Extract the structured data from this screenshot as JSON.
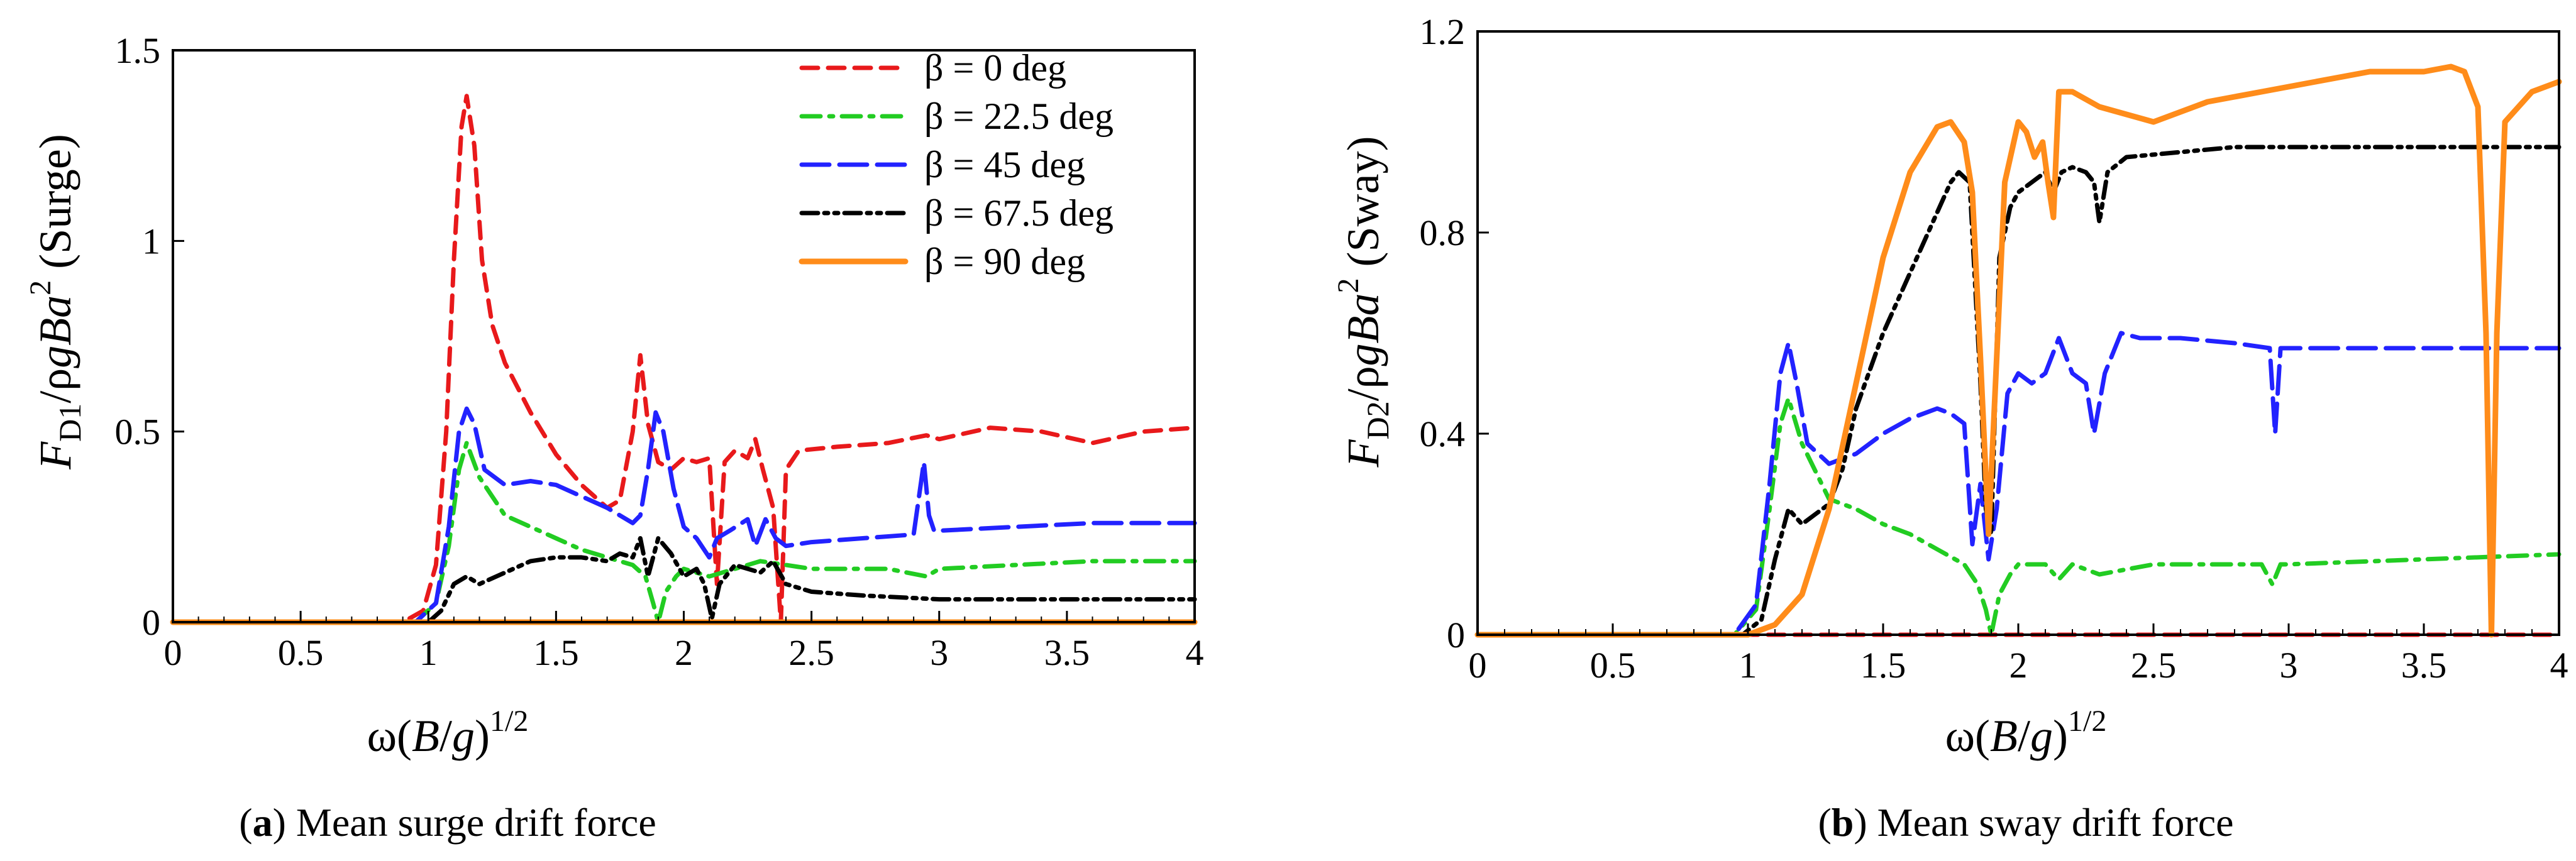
{
  "chart_data": [
    {
      "type": "line",
      "panel_letter": "a",
      "caption": "Mean surge drift force",
      "xlabel": {
        "main": "ω(",
        "var": "B",
        "slash": "/",
        "var2": "g",
        "close": ")",
        "sup": "1/2"
      },
      "ylabel": {
        "F": "F",
        "sub": "D1",
        "mid": "/ρ",
        "g": "g",
        "B": "B",
        "a": "a",
        "sup": "2",
        "tag": " (Surge)"
      },
      "xlim": [
        0,
        4
      ],
      "ylim": [
        0,
        1.5
      ],
      "xticks": [
        0,
        0.5,
        1,
        1.5,
        2,
        2.5,
        3,
        3.5,
        4
      ],
      "xtick_labels": [
        "0",
        "0.5",
        "1",
        "1.5",
        "2",
        "2.5",
        "3",
        "3.5",
        "4"
      ],
      "yticks": [
        0,
        0.5,
        1,
        1.5
      ],
      "ytick_labels": [
        "0",
        "0.5",
        "1",
        "1.5"
      ],
      "series": [
        {
          "name": "β = 0 deg",
          "color": "#e8191b",
          "style": "dashed",
          "x": [
            0,
            0.9,
            0.98,
            1.03,
            1.07,
            1.1,
            1.13,
            1.15,
            1.18,
            1.21,
            1.25,
            1.3,
            1.4,
            1.5,
            1.6,
            1.7,
            1.75,
            1.8,
            1.83,
            1.86,
            1.9,
            1.95,
            2.0,
            2.05,
            2.1,
            2.13,
            2.16,
            2.2,
            2.25,
            2.28,
            2.31,
            2.35,
            2.38,
            2.4,
            2.45,
            2.6,
            2.8,
            2.95,
            3.0,
            3.2,
            3.4,
            3.6,
            3.8,
            4.0
          ],
          "values": [
            0,
            0,
            0.03,
            0.15,
            0.5,
            0.95,
            1.3,
            1.38,
            1.25,
            0.95,
            0.78,
            0.68,
            0.55,
            0.44,
            0.36,
            0.3,
            0.32,
            0.5,
            0.7,
            0.52,
            0.42,
            0.4,
            0.43,
            0.42,
            0.43,
            0.1,
            0.42,
            0.45,
            0.43,
            0.48,
            0.4,
            0.3,
            0.0,
            0.4,
            0.45,
            0.46,
            0.47,
            0.49,
            0.48,
            0.51,
            0.5,
            0.47,
            0.5,
            0.51
          ]
        },
        {
          "name": "β = 22.5 deg",
          "color": "#22cc22",
          "style": "dashdot",
          "x": [
            0,
            0.95,
            1.03,
            1.08,
            1.12,
            1.15,
            1.2,
            1.3,
            1.4,
            1.5,
            1.6,
            1.7,
            1.8,
            1.85,
            1.88,
            1.9,
            1.93,
            1.97,
            2.0,
            2.1,
            2.2,
            2.3,
            2.4,
            2.5,
            2.8,
            2.95,
            3.0,
            3.3,
            3.6,
            4.0
          ],
          "values": [
            0,
            0,
            0.05,
            0.2,
            0.4,
            0.47,
            0.38,
            0.28,
            0.25,
            0.22,
            0.19,
            0.17,
            0.15,
            0.12,
            0.05,
            0.0,
            0.08,
            0.12,
            0.14,
            0.12,
            0.14,
            0.16,
            0.15,
            0.14,
            0.14,
            0.12,
            0.14,
            0.15,
            0.16,
            0.16
          ]
        },
        {
          "name": "β = 45 deg",
          "color": "#2222ff",
          "style": "longdash",
          "x": [
            0,
            0.95,
            1.03,
            1.08,
            1.12,
            1.15,
            1.18,
            1.22,
            1.3,
            1.4,
            1.5,
            1.6,
            1.7,
            1.8,
            1.83,
            1.86,
            1.89,
            1.92,
            1.96,
            2.0,
            2.05,
            2.1,
            2.13,
            2.18,
            2.25,
            2.28,
            2.32,
            2.36,
            2.4,
            2.5,
            2.7,
            2.9,
            2.94,
            2.96,
            2.98,
            3.0,
            3.3,
            3.6,
            4.0
          ],
          "values": [
            0,
            0,
            0.05,
            0.25,
            0.5,
            0.56,
            0.52,
            0.4,
            0.36,
            0.37,
            0.36,
            0.33,
            0.3,
            0.26,
            0.28,
            0.4,
            0.55,
            0.5,
            0.35,
            0.25,
            0.22,
            0.17,
            0.22,
            0.24,
            0.27,
            0.2,
            0.27,
            0.22,
            0.2,
            0.21,
            0.22,
            0.23,
            0.42,
            0.28,
            0.24,
            0.24,
            0.25,
            0.26,
            0.26
          ]
        },
        {
          "name": "β = 67.5 deg",
          "color": "#000000",
          "style": "dashdotdot",
          "x": [
            0,
            1.0,
            1.05,
            1.1,
            1.15,
            1.2,
            1.3,
            1.4,
            1.5,
            1.6,
            1.7,
            1.75,
            1.8,
            1.83,
            1.86,
            1.9,
            1.95,
            2.0,
            2.05,
            2.08,
            2.11,
            2.14,
            2.2,
            2.3,
            2.35,
            2.4,
            2.5,
            2.7,
            3.0,
            3.5,
            4.0
          ],
          "values": [
            0,
            0,
            0.03,
            0.1,
            0.12,
            0.1,
            0.13,
            0.16,
            0.17,
            0.17,
            0.16,
            0.18,
            0.17,
            0.22,
            0.12,
            0.22,
            0.18,
            0.12,
            0.14,
            0.1,
            0.01,
            0.1,
            0.15,
            0.13,
            0.16,
            0.1,
            0.08,
            0.07,
            0.06,
            0.06,
            0.06
          ]
        },
        {
          "name": "β = 90 deg",
          "color": "#ff8c1a",
          "style": "solid",
          "x": [
            0,
            4.0
          ],
          "values": [
            0,
            0
          ]
        }
      ],
      "legend": "top-right"
    },
    {
      "type": "line",
      "panel_letter": "b",
      "caption": "Mean sway drift force",
      "xlabel": {
        "main": "ω(",
        "var": "B",
        "slash": "/",
        "var2": "g",
        "close": ")",
        "sup": "1/2"
      },
      "ylabel": {
        "F": "F",
        "sub": "D2",
        "mid": "/ρ",
        "g": "g",
        "B": "B",
        "a": "a",
        "sup": "2",
        "tag": " (Sway)"
      },
      "xlim": [
        0,
        4
      ],
      "ylim": [
        0,
        1.2
      ],
      "xticks": [
        0,
        0.5,
        1,
        1.5,
        2,
        2.5,
        3,
        3.5,
        4
      ],
      "xtick_labels": [
        "0",
        "0.5",
        "1",
        "1.5",
        "2",
        "2.5",
        "3",
        "3.5",
        "4"
      ],
      "yticks": [
        0,
        0.4,
        0.8,
        1.2
      ],
      "ytick_labels": [
        "0",
        "0.4",
        "0.8",
        "1.2"
      ],
      "series": [
        {
          "name": "β = 0 deg",
          "color": "#e8191b",
          "style": "dashed",
          "x": [
            0,
            4.0
          ],
          "values": [
            0,
            0
          ]
        },
        {
          "name": "β = 22.5 deg",
          "color": "#22cc22",
          "style": "dashdot",
          "x": [
            0,
            0.95,
            1.03,
            1.08,
            1.12,
            1.15,
            1.2,
            1.3,
            1.4,
            1.5,
            1.6,
            1.7,
            1.8,
            1.85,
            1.88,
            1.9,
            1.93,
            1.97,
            2.0,
            2.1,
            2.15,
            2.2,
            2.3,
            2.5,
            2.9,
            2.94,
            2.97,
            3.0,
            3.5,
            4.0
          ],
          "values": [
            0,
            0,
            0.05,
            0.25,
            0.42,
            0.47,
            0.38,
            0.27,
            0.25,
            0.22,
            0.2,
            0.17,
            0.14,
            0.1,
            0.05,
            0.0,
            0.08,
            0.12,
            0.14,
            0.14,
            0.11,
            0.14,
            0.12,
            0.14,
            0.14,
            0.1,
            0.14,
            0.14,
            0.15,
            0.16
          ]
        },
        {
          "name": "β = 45 deg",
          "color": "#2222ff",
          "style": "longdash",
          "x": [
            0,
            0.95,
            1.03,
            1.08,
            1.12,
            1.15,
            1.18,
            1.22,
            1.3,
            1.4,
            1.5,
            1.6,
            1.7,
            1.75,
            1.8,
            1.83,
            1.86,
            1.89,
            1.92,
            1.96,
            2.0,
            2.05,
            2.1,
            2.15,
            2.2,
            2.25,
            2.28,
            2.32,
            2.38,
            2.45,
            2.6,
            2.8,
            2.93,
            2.95,
            2.97,
            3.0,
            3.5,
            4.0
          ],
          "values": [
            0,
            0,
            0.06,
            0.3,
            0.52,
            0.58,
            0.5,
            0.38,
            0.34,
            0.36,
            0.4,
            0.43,
            0.45,
            0.44,
            0.42,
            0.18,
            0.3,
            0.15,
            0.25,
            0.48,
            0.52,
            0.5,
            0.52,
            0.59,
            0.52,
            0.5,
            0.4,
            0.52,
            0.6,
            0.59,
            0.59,
            0.58,
            0.57,
            0.4,
            0.57,
            0.57,
            0.57,
            0.57
          ]
        },
        {
          "name": "β = 67.5 deg",
          "color": "#000000",
          "style": "dashdotdot",
          "x": [
            0,
            0.98,
            1.05,
            1.1,
            1.15,
            1.2,
            1.25,
            1.3,
            1.35,
            1.4,
            1.5,
            1.6,
            1.7,
            1.75,
            1.78,
            1.82,
            1.86,
            1.88,
            1.9,
            1.93,
            1.97,
            2.0,
            2.05,
            2.1,
            2.13,
            2.16,
            2.2,
            2.25,
            2.28,
            2.3,
            2.33,
            2.4,
            2.6,
            2.8,
            3.0,
            3.5,
            4.0
          ],
          "values": [
            0,
            0,
            0.03,
            0.15,
            0.25,
            0.22,
            0.24,
            0.26,
            0.33,
            0.45,
            0.6,
            0.72,
            0.84,
            0.9,
            0.92,
            0.9,
            0.5,
            0.25,
            0.2,
            0.75,
            0.85,
            0.88,
            0.9,
            0.92,
            0.88,
            0.92,
            0.93,
            0.92,
            0.9,
            0.82,
            0.92,
            0.95,
            0.96,
            0.97,
            0.97,
            0.97,
            0.97
          ]
        },
        {
          "name": "β = 90 deg",
          "color": "#ff8c1a",
          "style": "solid",
          "x": [
            0,
            1.0,
            1.1,
            1.2,
            1.3,
            1.4,
            1.5,
            1.6,
            1.7,
            1.75,
            1.8,
            1.83,
            1.86,
            1.89,
            1.92,
            1.95,
            2.0,
            2.03,
            2.06,
            2.09,
            2.11,
            2.13,
            2.15,
            2.2,
            2.3,
            2.5,
            2.7,
            2.9,
            3.1,
            3.3,
            3.5,
            3.6,
            3.65,
            3.7,
            3.73,
            3.75,
            3.77,
            3.8,
            3.9,
            4.0
          ],
          "values": [
            0,
            0,
            0.02,
            0.08,
            0.25,
            0.5,
            0.75,
            0.92,
            1.01,
            1.02,
            0.98,
            0.88,
            0.55,
            0.2,
            0.55,
            0.9,
            1.02,
            1.0,
            0.95,
            0.98,
            0.9,
            0.83,
            1.08,
            1.08,
            1.05,
            1.02,
            1.06,
            1.08,
            1.1,
            1.12,
            1.12,
            1.13,
            1.12,
            1.05,
            0.6,
            0.0,
            0.6,
            1.02,
            1.08,
            1.1
          ]
        }
      ],
      "legend": "none"
    }
  ]
}
